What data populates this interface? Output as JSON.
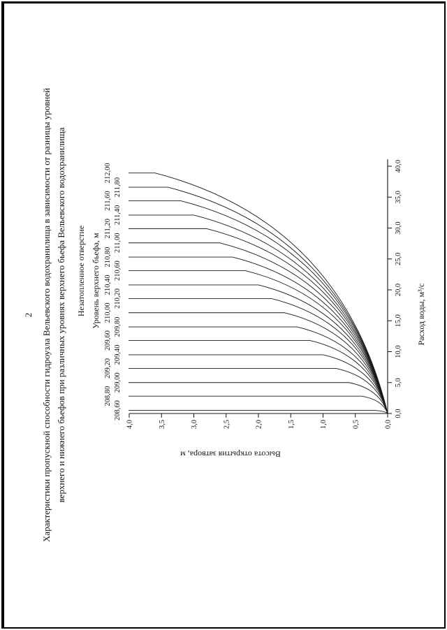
{
  "page": {
    "number": "2",
    "title_line1": "Характеристики пропускной способности гидроузла Вельевского водохранилища в зависимости от разницы уровней",
    "title_line2": "верхнего и нижнего бьефов при различных уровнях верхнего бьефа Вельевского водохранилища"
  },
  "chart_data": {
    "type": "line",
    "title": "Незатопленное отверстие",
    "series_header": "Уровень верхнего бьефа, м",
    "xlabel": "Расход воды, м³/с",
    "ylabel": "Высота открытия затвора, м",
    "xlim": [
      0,
      40
    ],
    "ylim": [
      0,
      4
    ],
    "x_ticks": [
      "0,0",
      "5,0",
      "10,0",
      "15,0",
      "20,0",
      "25,0",
      "30,0",
      "35,0",
      "40,0"
    ],
    "y_ticks": [
      "0,0",
      "0,5",
      "1,0",
      "1,5",
      "2,0",
      "2,5",
      "3,0",
      "3,5",
      "4,0"
    ],
    "grid": false,
    "legend_position": "top",
    "series": [
      {
        "label": "208,60",
        "level_m": 208.6,
        "q_max_m3s": 0.5,
        "h_bend_m": 0.2
      },
      {
        "label": "208,80",
        "level_m": 208.8,
        "q_max_m3s": 2.8,
        "h_bend_m": 0.4
      },
      {
        "label": "209,00",
        "level_m": 209.0,
        "q_max_m3s": 5.0,
        "h_bend_m": 0.6
      },
      {
        "label": "209,20",
        "level_m": 209.2,
        "q_max_m3s": 7.3,
        "h_bend_m": 0.8
      },
      {
        "label": "209,40",
        "level_m": 209.4,
        "q_max_m3s": 9.5,
        "h_bend_m": 1.0
      },
      {
        "label": "209,60",
        "level_m": 209.6,
        "q_max_m3s": 11.8,
        "h_bend_m": 1.2
      },
      {
        "label": "209,80",
        "level_m": 209.8,
        "q_max_m3s": 14.0,
        "h_bend_m": 1.4
      },
      {
        "label": "210,00",
        "level_m": 210.0,
        "q_max_m3s": 16.3,
        "h_bend_m": 1.6
      },
      {
        "label": "210,20",
        "level_m": 210.2,
        "q_max_m3s": 18.6,
        "h_bend_m": 1.8
      },
      {
        "label": "210,40",
        "level_m": 210.4,
        "q_max_m3s": 20.8,
        "h_bend_m": 2.0
      },
      {
        "label": "210,60",
        "level_m": 210.6,
        "q_max_m3s": 23.1,
        "h_bend_m": 2.2
      },
      {
        "label": "210,80",
        "level_m": 210.8,
        "q_max_m3s": 25.3,
        "h_bend_m": 2.4
      },
      {
        "label": "211,00",
        "level_m": 211.0,
        "q_max_m3s": 27.6,
        "h_bend_m": 2.6
      },
      {
        "label": "211,20",
        "level_m": 211.2,
        "q_max_m3s": 29.9,
        "h_bend_m": 2.8
      },
      {
        "label": "211,40",
        "level_m": 211.4,
        "q_max_m3s": 32.1,
        "h_bend_m": 3.0
      },
      {
        "label": "211,60",
        "level_m": 211.6,
        "q_max_m3s": 34.4,
        "h_bend_m": 3.2
      },
      {
        "label": "211,80",
        "level_m": 211.8,
        "q_max_m3s": 36.6,
        "h_bend_m": 3.4
      },
      {
        "label": "212,00",
        "level_m": 212.0,
        "q_max_m3s": 38.9,
        "h_bend_m": 3.6
      }
    ]
  }
}
